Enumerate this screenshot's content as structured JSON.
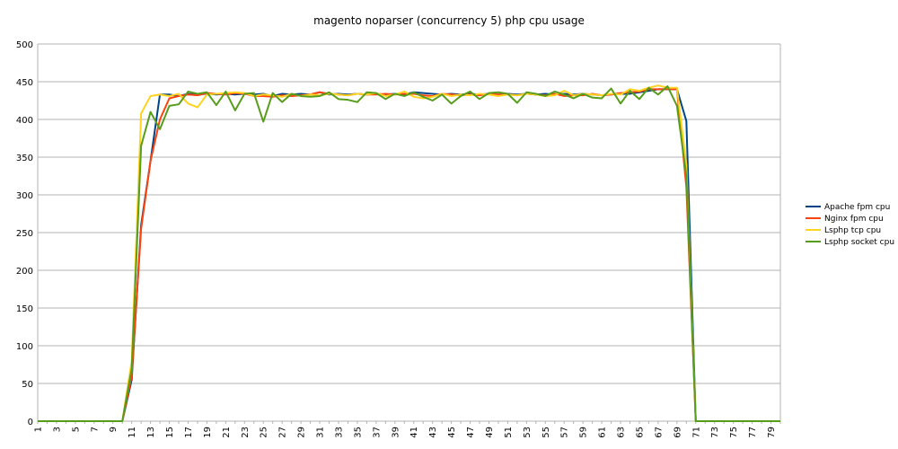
{
  "chart_data": {
    "type": "line",
    "title": "magento noparser (concurrency 5) php cpu usage",
    "xlabel": "",
    "ylabel": "",
    "ylim": [
      0,
      500
    ],
    "yticks": [
      0,
      50,
      100,
      150,
      200,
      250,
      300,
      350,
      400,
      450,
      500
    ],
    "x": [
      1,
      2,
      3,
      4,
      5,
      6,
      7,
      8,
      9,
      10,
      11,
      12,
      13,
      14,
      15,
      16,
      17,
      18,
      19,
      20,
      21,
      22,
      23,
      24,
      25,
      26,
      27,
      28,
      29,
      30,
      31,
      32,
      33,
      34,
      35,
      36,
      37,
      38,
      39,
      40,
      41,
      42,
      43,
      44,
      45,
      46,
      47,
      48,
      49,
      50,
      51,
      52,
      53,
      54,
      55,
      56,
      57,
      58,
      59,
      60,
      61,
      62,
      63,
      64,
      65,
      66,
      67,
      68,
      69,
      70,
      71,
      72,
      73,
      74,
      75,
      76,
      77,
      78,
      79,
      80
    ],
    "xtick_labels": [
      "1",
      "3",
      "5",
      "7",
      "9",
      "11",
      "13",
      "15",
      "17",
      "19",
      "21",
      "23",
      "25",
      "27",
      "29",
      "31",
      "33",
      "35",
      "37",
      "39",
      "41",
      "43",
      "45",
      "47",
      "49",
      "51",
      "53",
      "55",
      "57",
      "59",
      "61",
      "63",
      "65",
      "67",
      "69",
      "71",
      "73",
      "75",
      "77",
      "79"
    ],
    "grid": true,
    "legend_position": "right",
    "series": [
      {
        "name": "Apache fpm cpu",
        "color": "#004586",
        "values": [
          0,
          0,
          0,
          0,
          0,
          0,
          0,
          0,
          0,
          0,
          55,
          260,
          345,
          433,
          433,
          431,
          434,
          433,
          434,
          433,
          434,
          433,
          434,
          433,
          434,
          431,
          434,
          433,
          434,
          433,
          436,
          433,
          434,
          433,
          434,
          433,
          434,
          433,
          434,
          433,
          436,
          435,
          434,
          433,
          434,
          433,
          434,
          433,
          434,
          433,
          434,
          433,
          434,
          433,
          434,
          433,
          434,
          433,
          434,
          433,
          432,
          433,
          434,
          434,
          436,
          438,
          440,
          440,
          440,
          398,
          0,
          0,
          0,
          0,
          0,
          0,
          0,
          0,
          0,
          0
        ]
      },
      {
        "name": "Nginx fpm cpu",
        "color": "#ff420e",
        "values": [
          0,
          0,
          0,
          0,
          0,
          0,
          0,
          0,
          0,
          0,
          60,
          255,
          345,
          400,
          428,
          431,
          433,
          432,
          435,
          434,
          433,
          435,
          434,
          431,
          431,
          430,
          432,
          431,
          432,
          433,
          436,
          434,
          433,
          432,
          434,
          433,
          433,
          434,
          433,
          434,
          434,
          432,
          431,
          434,
          433,
          432,
          433,
          432,
          434,
          433,
          433,
          432,
          434,
          433,
          432,
          434,
          431,
          432,
          432,
          434,
          432,
          433,
          435,
          436,
          437,
          440,
          440,
          440,
          440,
          310,
          0,
          0,
          0,
          0,
          0,
          0,
          0,
          0,
          0,
          0
        ]
      },
      {
        "name": "Lsphp tcp cpu",
        "color": "#ffd320",
        "values": [
          0,
          0,
          0,
          0,
          0,
          0,
          0,
          0,
          0,
          0,
          80,
          408,
          431,
          433,
          431,
          434,
          421,
          416,
          433,
          434,
          435,
          436,
          435,
          431,
          433,
          432,
          430,
          434,
          431,
          433,
          432,
          434,
          433,
          432,
          434,
          433,
          435,
          431,
          433,
          437,
          430,
          428,
          430,
          434,
          431,
          433,
          432,
          434,
          433,
          431,
          433,
          432,
          434,
          433,
          431,
          432,
          438,
          432,
          434,
          433,
          432,
          434,
          433,
          440,
          438,
          442,
          445,
          442,
          442,
          340,
          0,
          0,
          0,
          0,
          0,
          0,
          0,
          0,
          0,
          0
        ]
      },
      {
        "name": "Lsphp socket cpu",
        "color": "#579d1c",
        "values": [
          0,
          0,
          0,
          0,
          0,
          0,
          0,
          0,
          0,
          0,
          70,
          365,
          410,
          387,
          418,
          420,
          437,
          434,
          436,
          419,
          437,
          412,
          434,
          435,
          397,
          435,
          423,
          434,
          431,
          430,
          431,
          436,
          427,
          426,
          423,
          436,
          435,
          427,
          434,
          431,
          436,
          430,
          425,
          433,
          421,
          431,
          437,
          427,
          435,
          436,
          434,
          422,
          436,
          434,
          431,
          437,
          433,
          428,
          434,
          429,
          428,
          441,
          421,
          438,
          427,
          442,
          433,
          444,
          418,
          325,
          0,
          0,
          0,
          0,
          0,
          0,
          0,
          0,
          0,
          0
        ]
      }
    ]
  }
}
